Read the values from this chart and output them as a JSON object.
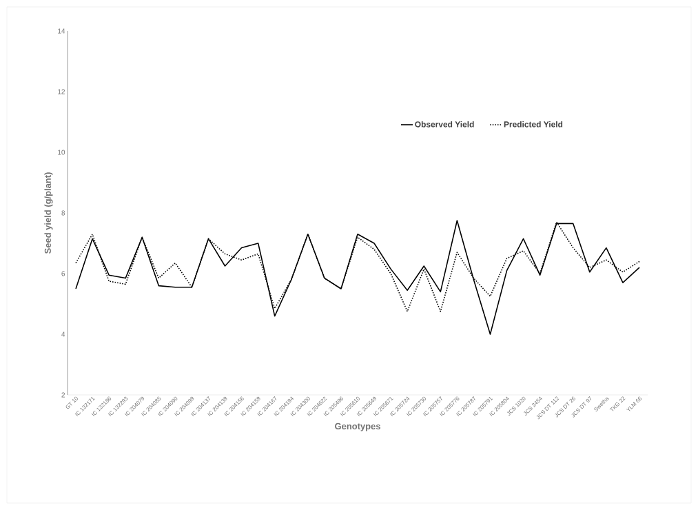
{
  "chart_data": {
    "type": "line",
    "xlabel": "Genotypes",
    "ylabel": "Seed yield (g/plant)",
    "categories": [
      "GT 10",
      "IC 132171",
      "IC 132186",
      "IC 132293",
      "IC 204079",
      "IC 204085",
      "IC 204090",
      "IC 204099",
      "IC 204137",
      "IC 204139",
      "IC 204156",
      "IC 204159",
      "IC 204167",
      "IC 204194",
      "IC 204300",
      "IC 204622",
      "IC 205496",
      "IC 205610",
      "IC 205649",
      "IC 205671",
      "IC 205724",
      "IC 205730",
      "IC 205757",
      "IC 205776",
      "IC 205787",
      "IC 205791",
      "IC 205804",
      "JCS 1020",
      "JCS 2454",
      "JCS DT 112",
      "JCS DT 26",
      "JCS DT 97",
      "Swetha",
      "TKG 22",
      "YLM 66"
    ],
    "series": [
      {
        "name": "Observed Yield",
        "color": "#000000",
        "line_style": "solid",
        "values": [
          5.5,
          7.15,
          5.95,
          5.85,
          7.2,
          5.6,
          5.55,
          5.55,
          7.15,
          6.25,
          6.85,
          7.0,
          4.6,
          5.8,
          7.3,
          5.85,
          5.5,
          7.3,
          7.0,
          6.15,
          5.45,
          6.25,
          5.4,
          7.75,
          5.8,
          4.0,
          6.1,
          7.15,
          5.95,
          7.65,
          7.65,
          6.05,
          6.85,
          5.7,
          6.2
        ]
      },
      {
        "name": "Predicted Yield",
        "color": "#000000",
        "line_style": "dotted",
        "values": [
          6.35,
          7.3,
          5.75,
          5.65,
          7.2,
          5.85,
          6.35,
          5.55,
          7.15,
          6.65,
          6.45,
          6.65,
          4.85,
          5.8,
          7.3,
          5.85,
          5.5,
          7.2,
          6.8,
          6.0,
          4.75,
          6.15,
          4.75,
          6.7,
          5.85,
          5.25,
          6.5,
          6.75,
          6.0,
          7.7,
          6.85,
          6.2,
          6.45,
          6.05,
          6.4
        ]
      }
    ],
    "ylim": [
      2,
      14
    ],
    "yticks": [
      2,
      4,
      6,
      8,
      10,
      12,
      14
    ],
    "grid": false,
    "legend": "top right",
    "marker": "none"
  }
}
